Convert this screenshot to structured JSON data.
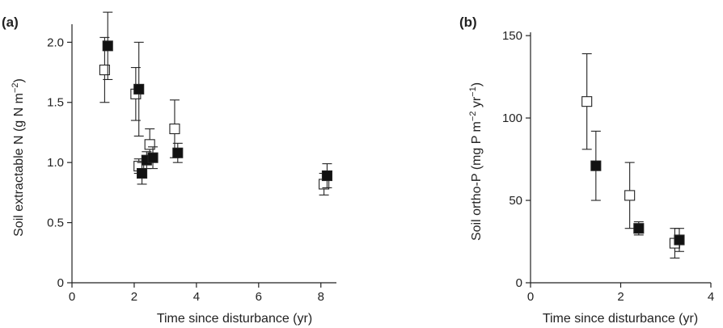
{
  "chart_data": [
    {
      "type": "scatter",
      "panel_label": "(a)",
      "xlabel": "Time since disturbance (yr)",
      "ylabel": "Soil extractable N (g N m",
      "ylabel_sup": "−2",
      "ylabel_end": ")",
      "xlim": [
        0,
        8.5
      ],
      "ylim": [
        0,
        2.15
      ],
      "xticks": [
        0,
        2,
        4,
        6,
        8
      ],
      "xtick_labels": [
        "0",
        "2",
        "4",
        "6",
        "8"
      ],
      "yticks": [
        0,
        0.5,
        1.0,
        1.5,
        2.0
      ],
      "ytick_labels": [
        "0",
        "0.5",
        "1.0",
        "1.5",
        "2.0"
      ],
      "series": [
        {
          "marker": "open-square",
          "points": [
            {
              "x": 1.05,
              "y": 1.77,
              "err": 0.27
            },
            {
              "x": 2.05,
              "y": 1.57,
              "err": 0.22
            },
            {
              "x": 2.15,
              "y": 0.97,
              "err": 0.06
            },
            {
              "x": 2.5,
              "y": 1.15,
              "err": 0.13
            },
            {
              "x": 3.3,
              "y": 1.28,
              "err": 0.24
            },
            {
              "x": 8.1,
              "y": 0.82,
              "err": 0.09
            }
          ]
        },
        {
          "marker": "filled-square",
          "points": [
            {
              "x": 1.15,
              "y": 1.97,
              "err": 0.28
            },
            {
              "x": 2.15,
              "y": 1.61,
              "err": 0.39
            },
            {
              "x": 2.25,
              "y": 0.91,
              "err": 0.09
            },
            {
              "x": 2.4,
              "y": 1.02,
              "err": 0.07
            },
            {
              "x": 2.6,
              "y": 1.04,
              "err": 0.09
            },
            {
              "x": 3.4,
              "y": 1.08,
              "err": 0.08
            },
            {
              "x": 8.2,
              "y": 0.89,
              "err": 0.1
            }
          ]
        }
      ]
    },
    {
      "type": "scatter",
      "panel_label": "(b)",
      "xlabel": "Time since disturbance (yr)",
      "ylabel": "Soil ortho-P (mg P m",
      "ylabel_sup": "−2",
      "ylabel_mid": " yr",
      "ylabel_sup2": "−1",
      "ylabel_end": ")",
      "xlim": [
        0,
        4
      ],
      "ylim": [
        0,
        152
      ],
      "xticks": [
        0,
        2,
        4
      ],
      "xtick_labels": [
        "0",
        "2",
        "4"
      ],
      "yticks": [
        0,
        50,
        100,
        150
      ],
      "ytick_labels": [
        "0",
        "50",
        "100",
        "150"
      ],
      "series": [
        {
          "marker": "open-square",
          "points": [
            {
              "x": 1.25,
              "y": 110,
              "err": 29
            },
            {
              "x": 2.2,
              "y": 53,
              "err": 20
            },
            {
              "x": 3.2,
              "y": 24,
              "err": 9
            }
          ]
        },
        {
          "marker": "filled-square",
          "points": [
            {
              "x": 1.45,
              "y": 71,
              "err": 21
            },
            {
              "x": 2.4,
              "y": 33,
              "err": 4
            },
            {
              "x": 3.3,
              "y": 26,
              "err": 7
            }
          ]
        }
      ]
    }
  ]
}
